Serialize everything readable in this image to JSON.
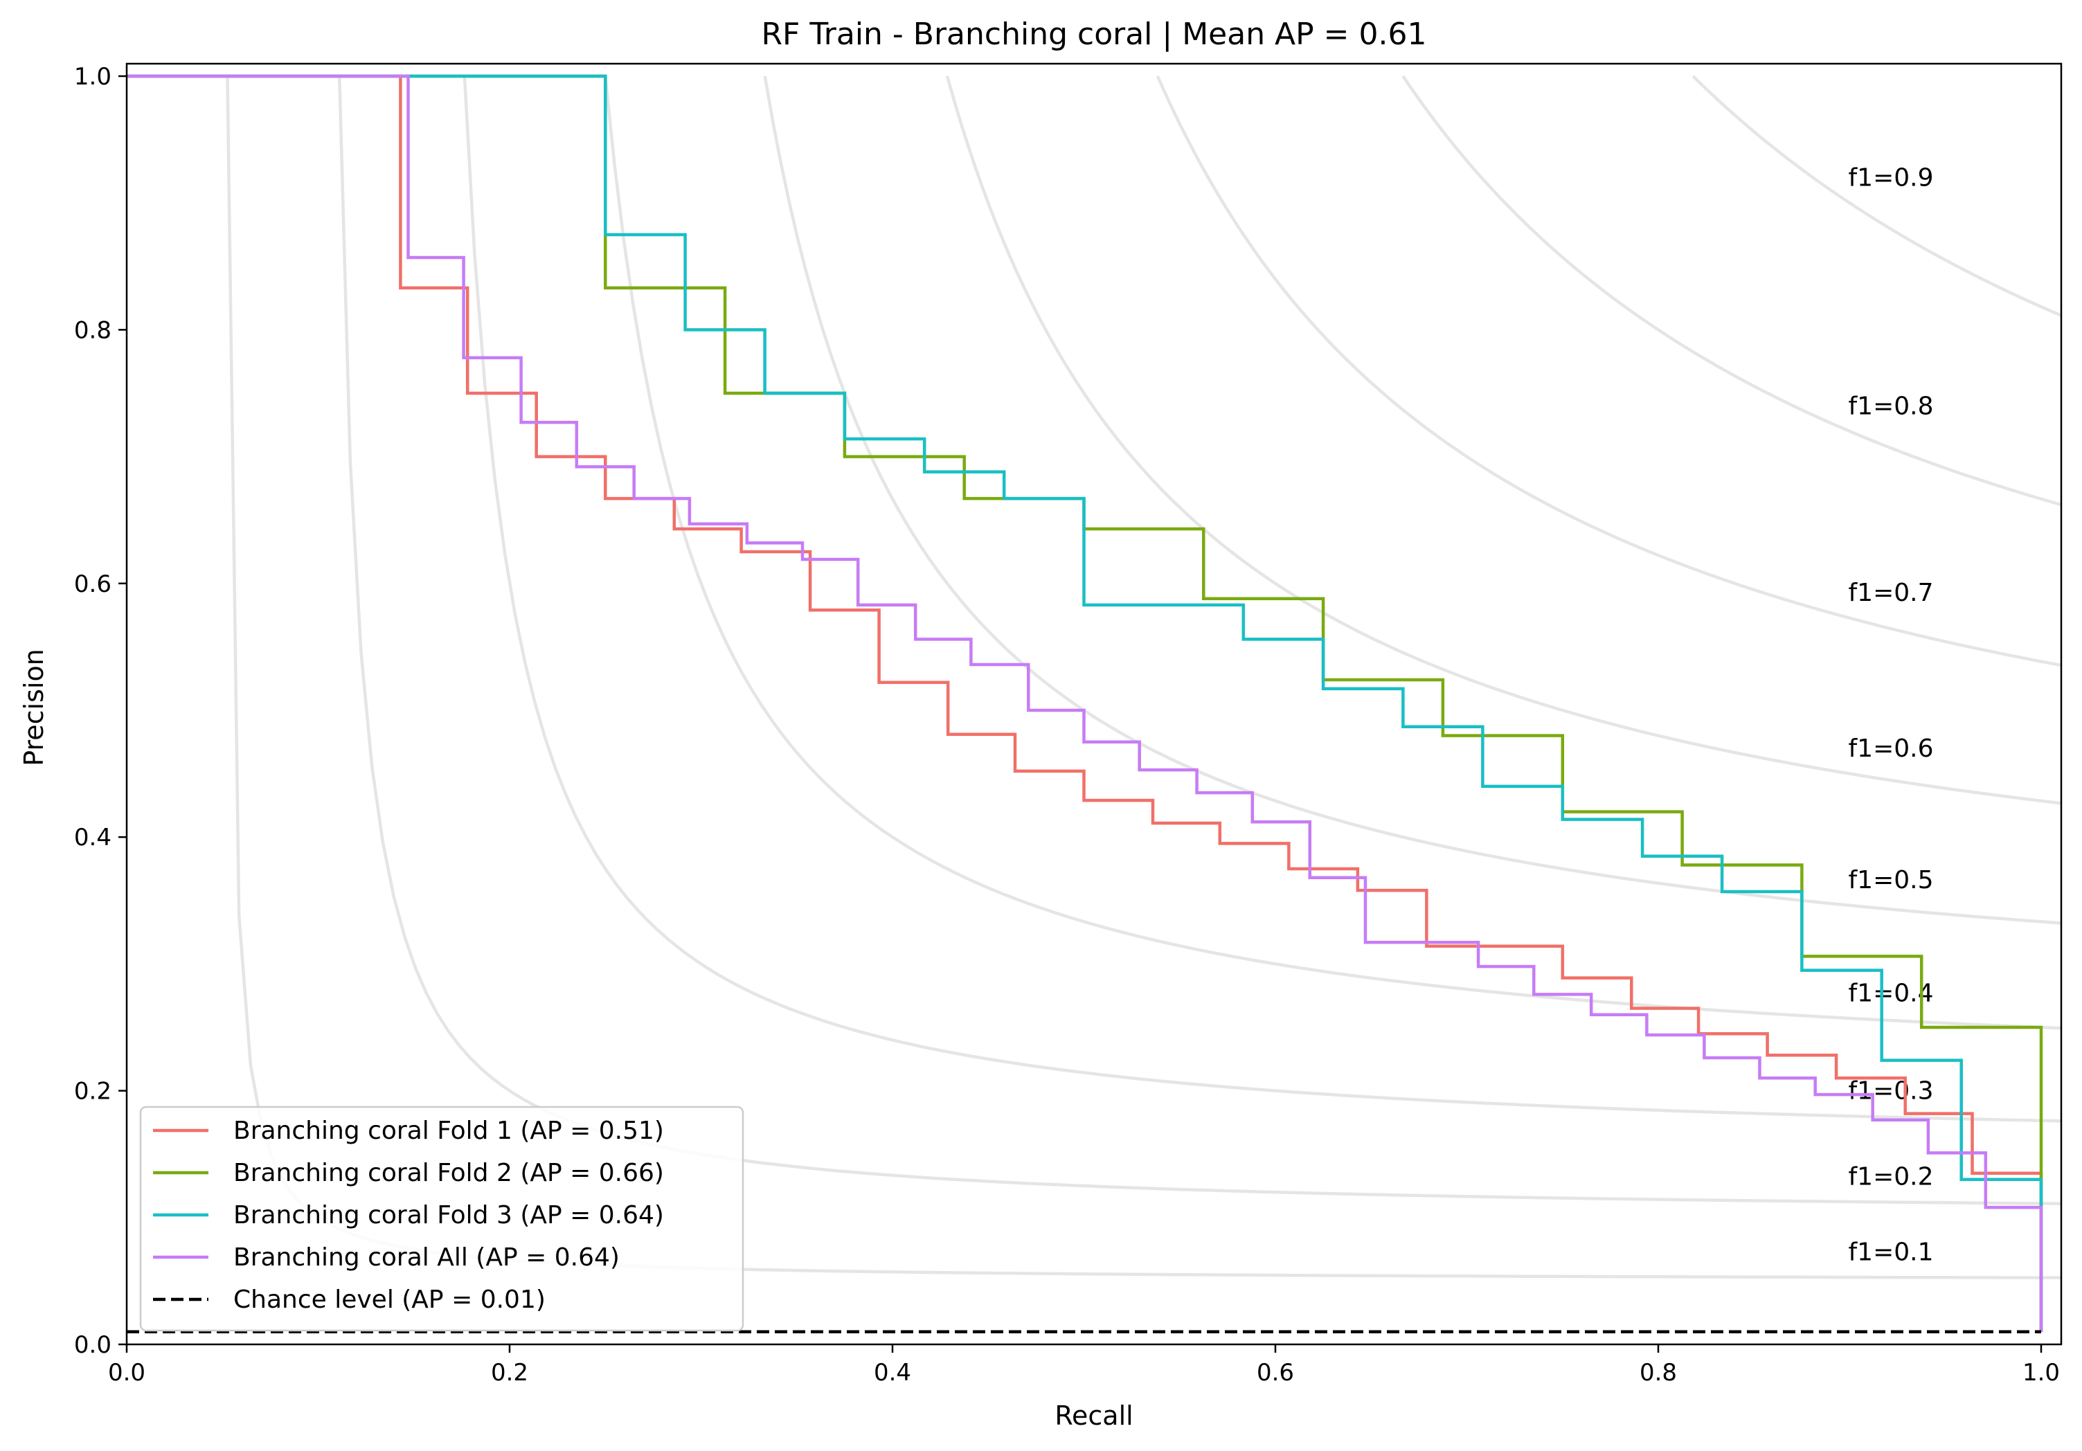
{
  "chart_data": {
    "type": "line",
    "title": "RF Train - Branching coral | Mean AP = 0.61",
    "xlabel": "Recall",
    "ylabel": "Precision",
    "xlim": [
      0.0,
      1.0
    ],
    "ylim": [
      0.0,
      1.0
    ],
    "x_ticks": [
      "0.0",
      "0.2",
      "0.4",
      "0.6",
      "0.8",
      "1.0"
    ],
    "y_ticks": [
      "0.0",
      "0.2",
      "0.4",
      "0.6",
      "0.8",
      "1.0"
    ],
    "grid": false,
    "legend_position": "lower-left",
    "iso_f1": {
      "values": [
        0.1,
        0.2,
        0.3,
        0.4,
        0.5,
        0.6,
        0.7,
        0.8,
        0.9
      ],
      "labels": [
        "f1=0.1",
        "f1=0.2",
        "f1=0.3",
        "f1=0.4",
        "f1=0.5",
        "f1=0.6",
        "f1=0.7",
        "f1=0.8",
        "f1=0.9"
      ],
      "color": "#e5e5e5"
    },
    "series": [
      {
        "name": "Branching coral Fold 1 (AP = 0.51)",
        "color": "#f07068",
        "dash": "solid",
        "points": [
          [
            0.0,
            1.0
          ],
          [
            0.143,
            1.0
          ],
          [
            0.143,
            0.833
          ],
          [
            0.178,
            0.833
          ],
          [
            0.178,
            0.75
          ],
          [
            0.214,
            0.75
          ],
          [
            0.214,
            0.7
          ],
          [
            0.25,
            0.7
          ],
          [
            0.25,
            0.667
          ],
          [
            0.286,
            0.667
          ],
          [
            0.286,
            0.643
          ],
          [
            0.321,
            0.643
          ],
          [
            0.321,
            0.625
          ],
          [
            0.357,
            0.625
          ],
          [
            0.357,
            0.579
          ],
          [
            0.393,
            0.579
          ],
          [
            0.393,
            0.522
          ],
          [
            0.429,
            0.522
          ],
          [
            0.429,
            0.481
          ],
          [
            0.464,
            0.481
          ],
          [
            0.464,
            0.452
          ],
          [
            0.5,
            0.452
          ],
          [
            0.5,
            0.429
          ],
          [
            0.536,
            0.429
          ],
          [
            0.536,
            0.411
          ],
          [
            0.571,
            0.411
          ],
          [
            0.571,
            0.395
          ],
          [
            0.607,
            0.395
          ],
          [
            0.607,
            0.375
          ],
          [
            0.643,
            0.375
          ],
          [
            0.643,
            0.358
          ],
          [
            0.679,
            0.358
          ],
          [
            0.679,
            0.314
          ],
          [
            0.75,
            0.314
          ],
          [
            0.75,
            0.289
          ],
          [
            0.786,
            0.289
          ],
          [
            0.786,
            0.265
          ],
          [
            0.821,
            0.265
          ],
          [
            0.821,
            0.245
          ],
          [
            0.857,
            0.245
          ],
          [
            0.857,
            0.228
          ],
          [
            0.893,
            0.228
          ],
          [
            0.893,
            0.21
          ],
          [
            0.929,
            0.21
          ],
          [
            0.929,
            0.182
          ],
          [
            0.964,
            0.182
          ],
          [
            0.964,
            0.135
          ],
          [
            1.0,
            0.135
          ],
          [
            1.0,
            0.01
          ]
        ]
      },
      {
        "name": "Branching coral Fold 2 (AP = 0.66)",
        "color": "#7aaa10",
        "dash": "solid",
        "points": [
          [
            0.0,
            1.0
          ],
          [
            0.25,
            1.0
          ],
          [
            0.25,
            0.833
          ],
          [
            0.3125,
            0.833
          ],
          [
            0.3125,
            0.75
          ],
          [
            0.375,
            0.75
          ],
          [
            0.375,
            0.7
          ],
          [
            0.4375,
            0.7
          ],
          [
            0.4375,
            0.667
          ],
          [
            0.5,
            0.667
          ],
          [
            0.5,
            0.643
          ],
          [
            0.5625,
            0.643
          ],
          [
            0.5625,
            0.588
          ],
          [
            0.625,
            0.588
          ],
          [
            0.625,
            0.524
          ],
          [
            0.6875,
            0.524
          ],
          [
            0.6875,
            0.48
          ],
          [
            0.75,
            0.48
          ],
          [
            0.75,
            0.42
          ],
          [
            0.8125,
            0.42
          ],
          [
            0.8125,
            0.378
          ],
          [
            0.875,
            0.378
          ],
          [
            0.875,
            0.306
          ],
          [
            0.9375,
            0.306
          ],
          [
            0.9375,
            0.25
          ],
          [
            1.0,
            0.25
          ],
          [
            1.0,
            0.01
          ]
        ]
      },
      {
        "name": "Branching coral Fold 3 (AP = 0.64)",
        "color": "#19bfc4",
        "dash": "solid",
        "points": [
          [
            0.0,
            1.0
          ],
          [
            0.25,
            1.0
          ],
          [
            0.25,
            0.875
          ],
          [
            0.2917,
            0.875
          ],
          [
            0.2917,
            0.8
          ],
          [
            0.3333,
            0.8
          ],
          [
            0.3333,
            0.75
          ],
          [
            0.375,
            0.75
          ],
          [
            0.375,
            0.714
          ],
          [
            0.4167,
            0.714
          ],
          [
            0.4167,
            0.688
          ],
          [
            0.4583,
            0.688
          ],
          [
            0.4583,
            0.667
          ],
          [
            0.5,
            0.667
          ],
          [
            0.5,
            0.583
          ],
          [
            0.5833,
            0.583
          ],
          [
            0.5833,
            0.556
          ],
          [
            0.625,
            0.556
          ],
          [
            0.625,
            0.517
          ],
          [
            0.6667,
            0.517
          ],
          [
            0.6667,
            0.487
          ],
          [
            0.7083,
            0.487
          ],
          [
            0.7083,
            0.44
          ],
          [
            0.75,
            0.44
          ],
          [
            0.75,
            0.414
          ],
          [
            0.7917,
            0.414
          ],
          [
            0.7917,
            0.385
          ],
          [
            0.8333,
            0.385
          ],
          [
            0.8333,
            0.357
          ],
          [
            0.875,
            0.357
          ],
          [
            0.875,
            0.295
          ],
          [
            0.9167,
            0.295
          ],
          [
            0.9167,
            0.224
          ],
          [
            0.9583,
            0.224
          ],
          [
            0.9583,
            0.13
          ],
          [
            1.0,
            0.13
          ],
          [
            1.0,
            0.01
          ]
        ]
      },
      {
        "name": "Branching coral All (AP = 0.64)",
        "color": "#c77cf5",
        "dash": "solid",
        "points": [
          [
            0.0,
            1.0
          ],
          [
            0.147,
            1.0
          ],
          [
            0.147,
            0.857
          ],
          [
            0.176,
            0.857
          ],
          [
            0.176,
            0.778
          ],
          [
            0.206,
            0.778
          ],
          [
            0.206,
            0.727
          ],
          [
            0.235,
            0.727
          ],
          [
            0.235,
            0.692
          ],
          [
            0.265,
            0.692
          ],
          [
            0.265,
            0.667
          ],
          [
            0.294,
            0.667
          ],
          [
            0.294,
            0.647
          ],
          [
            0.324,
            0.647
          ],
          [
            0.324,
            0.632
          ],
          [
            0.353,
            0.632
          ],
          [
            0.353,
            0.619
          ],
          [
            0.382,
            0.619
          ],
          [
            0.382,
            0.583
          ],
          [
            0.412,
            0.583
          ],
          [
            0.412,
            0.556
          ],
          [
            0.441,
            0.556
          ],
          [
            0.441,
            0.536
          ],
          [
            0.471,
            0.536
          ],
          [
            0.471,
            0.5
          ],
          [
            0.5,
            0.5
          ],
          [
            0.5,
            0.475
          ],
          [
            0.529,
            0.475
          ],
          [
            0.529,
            0.453
          ],
          [
            0.559,
            0.453
          ],
          [
            0.559,
            0.435
          ],
          [
            0.588,
            0.435
          ],
          [
            0.588,
            0.412
          ],
          [
            0.618,
            0.412
          ],
          [
            0.618,
            0.368
          ],
          [
            0.647,
            0.368
          ],
          [
            0.647,
            0.317
          ],
          [
            0.706,
            0.317
          ],
          [
            0.706,
            0.298
          ],
          [
            0.735,
            0.298
          ],
          [
            0.735,
            0.276
          ],
          [
            0.765,
            0.276
          ],
          [
            0.765,
            0.26
          ],
          [
            0.794,
            0.26
          ],
          [
            0.794,
            0.244
          ],
          [
            0.824,
            0.244
          ],
          [
            0.824,
            0.226
          ],
          [
            0.853,
            0.226
          ],
          [
            0.853,
            0.21
          ],
          [
            0.882,
            0.21
          ],
          [
            0.882,
            0.197
          ],
          [
            0.912,
            0.197
          ],
          [
            0.912,
            0.177
          ],
          [
            0.941,
            0.177
          ],
          [
            0.941,
            0.151
          ],
          [
            0.971,
            0.151
          ],
          [
            0.971,
            0.108
          ],
          [
            1.0,
            0.108
          ],
          [
            1.0,
            0.01
          ]
        ]
      },
      {
        "name": "Chance level (AP = 0.01)",
        "color": "#000000",
        "dash": "dashed",
        "points": [
          [
            0.0,
            0.01
          ],
          [
            1.0,
            0.01
          ]
        ]
      }
    ]
  }
}
